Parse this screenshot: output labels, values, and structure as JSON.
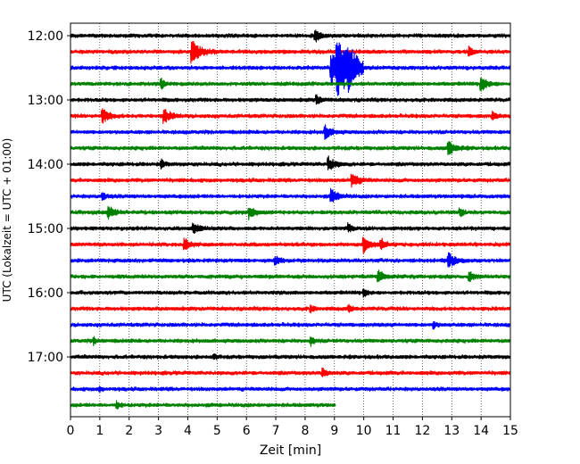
{
  "chart_data": {
    "type": "line",
    "title": "",
    "xlabel": "Zeit  [min]",
    "ylabel": "UTC (Lokalzeit = UTC + 01:00)",
    "xlim": [
      0,
      15
    ],
    "xticks": [
      "0",
      "1",
      "2",
      "3",
      "4",
      "5",
      "6",
      "7",
      "8",
      "9",
      "10",
      "11",
      "12",
      "13",
      "14",
      "15"
    ],
    "ylim_traces": [
      0,
      24
    ],
    "yticks": [
      {
        "label": "12:00",
        "trace": 0
      },
      {
        "label": "13:00",
        "trace": 4
      },
      {
        "label": "14:00",
        "trace": 8
      },
      {
        "label": "15:00",
        "trace": 12
      },
      {
        "label": "16:00",
        "trace": 16
      },
      {
        "label": "17:00",
        "trace": 20
      }
    ],
    "grid": "vertical-dotted",
    "trace_minutes": 15,
    "last_trace_end_min": 9.05,
    "color_cycle": [
      "#000000",
      "#ff0000",
      "#0000ff",
      "#008000"
    ],
    "traces": [
      {
        "start": "12:00",
        "events": [
          [
            8.35,
            0.9
          ]
        ]
      },
      {
        "start": "12:15",
        "events": [
          [
            4.15,
            1.6
          ],
          [
            13.6,
            0.7
          ]
        ]
      },
      {
        "start": "12:30",
        "events": [
          [
            8.9,
            2.6
          ],
          [
            9.1,
            3.6
          ],
          [
            9.5,
            1.2
          ]
        ]
      },
      {
        "start": "12:45",
        "events": [
          [
            3.1,
            0.7
          ],
          [
            14.0,
            1.1
          ]
        ]
      },
      {
        "start": "13:00",
        "events": [
          [
            8.4,
            0.7
          ]
        ]
      },
      {
        "start": "13:15",
        "events": [
          [
            1.1,
            1.1
          ],
          [
            3.2,
            1.1
          ],
          [
            14.4,
            0.6
          ]
        ]
      },
      {
        "start": "13:30",
        "events": [
          [
            8.7,
            1.0
          ]
        ]
      },
      {
        "start": "13:45",
        "events": [
          [
            12.9,
            1.1
          ]
        ]
      },
      {
        "start": "14:00",
        "events": [
          [
            3.1,
            0.6
          ],
          [
            8.8,
            1.1
          ]
        ]
      },
      {
        "start": "14:15",
        "events": [
          [
            9.6,
            1.1
          ]
        ]
      },
      {
        "start": "14:30",
        "events": [
          [
            8.9,
            1.1
          ],
          [
            1.1,
            0.6
          ]
        ]
      },
      {
        "start": "14:45",
        "events": [
          [
            1.3,
            1.0
          ],
          [
            6.1,
            1.0
          ],
          [
            13.3,
            0.6
          ]
        ]
      },
      {
        "start": "15:00",
        "events": [
          [
            4.2,
            0.9
          ],
          [
            9.5,
            0.6
          ]
        ]
      },
      {
        "start": "15:15",
        "events": [
          [
            3.9,
            0.9
          ],
          [
            10.0,
            1.1
          ],
          [
            10.6,
            0.8
          ]
        ]
      },
      {
        "start": "15:30",
        "events": [
          [
            7.0,
            0.7
          ],
          [
            12.9,
            1.1
          ]
        ]
      },
      {
        "start": "15:45",
        "events": [
          [
            10.5,
            1.0
          ],
          [
            13.6,
            0.8
          ]
        ]
      },
      {
        "start": "16:00",
        "events": [
          [
            10.0,
            0.6
          ]
        ]
      },
      {
        "start": "16:15",
        "events": [
          [
            8.2,
            0.5
          ],
          [
            9.5,
            0.5
          ]
        ]
      },
      {
        "start": "16:30",
        "events": [
          [
            12.4,
            0.5
          ]
        ]
      },
      {
        "start": "16:45",
        "events": [
          [
            0.8,
            0.5
          ],
          [
            8.2,
            0.6
          ]
        ]
      },
      {
        "start": "17:00",
        "events": [
          [
            4.9,
            0.4
          ]
        ]
      },
      {
        "start": "17:15",
        "events": [
          [
            8.6,
            0.7
          ]
        ]
      },
      {
        "start": "17:30",
        "events": [
          [
            1.0,
            0.4
          ]
        ]
      },
      {
        "start": "17:45",
        "events": [
          [
            1.6,
            0.5
          ]
        ]
      }
    ]
  }
}
